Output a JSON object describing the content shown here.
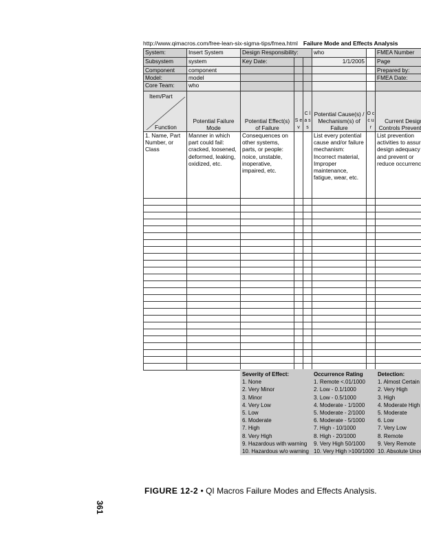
{
  "sheet": {
    "url": "http://www.qimacros.com/free-lean-six-sigma-tips/fmea.html",
    "title": "Failure Mode and Effects Analysis",
    "info": {
      "system_label": "System:",
      "system_value": "Insert System",
      "design_resp_label": "Design Responsibility:",
      "design_resp_value": "who",
      "fmea_number_label": "FMEA Number",
      "subsystem_label": "Subsystem",
      "subsystem_value": "system",
      "key_date_label": "Key Date:",
      "key_date_value": "1/1/2005",
      "page_label": "Page",
      "component_label": "Component",
      "component_value": "component",
      "prepared_by_label": "Prepared by:",
      "model_label": "Model:",
      "model_value": "model",
      "fmea_date_label": "FMEA Date:",
      "core_team_label": "Core Team:",
      "core_team_value": "who"
    },
    "headers": {
      "item_part": "Item/Part",
      "function": "Function",
      "failure_mode": "Potential Failure Mode",
      "effects": "Potential Effect(s) of Failure",
      "sev": "S e v",
      "class": "C l a s s",
      "causes": "Potential Cause(s) / Mechanism(s) of Failure",
      "occur": "O c c u r",
      "controls": "Current Design Controls Prevention"
    },
    "descriptions": {
      "item": "1. Name, Part Number, or Class",
      "failure_mode": "Manner in which part could fail: cracked, loosened, deformed, leaking, oxidized, etc.",
      "effects": "Consequences on other systems, parts, or people: noice, unstable, inoperative, impaired, etc.",
      "causes": "List every potential cause and/or failure mechanism: Incorrect material, Improper maintenance, fatigue, wear, etc.",
      "controls": "List prevention activities to assure design adequacy and prevent or reduce occurrence."
    },
    "legend": {
      "severity": [
        "Severity of Effect:",
        "1. None",
        "2. Very Minor",
        "3. Minor",
        "4. Very Low",
        "5. Low",
        "6. Moderate",
        "7. High",
        "8. Very High",
        "9. Hazardous with warning",
        "10. Hazardous w/o warning"
      ],
      "occurrence": [
        "Occurrence Rating",
        "1. Remote <.01/1000",
        "2. Low - 0.1/1000",
        "3. Low - 0.5/1000",
        "4. Moderate - 1/1000",
        "5. Moderate - 2/1000",
        "6. Moderate - 5/1000",
        "7. High -  10/1000",
        "8. High -  20/1000",
        "9. Very High 50/1000",
        "10. Very High >100/1000"
      ],
      "detection": [
        "Detection:",
        "1. Almost Certain",
        "2. Very High",
        "3. High",
        "4. Moderate High",
        "5. Moderate",
        "6. Low",
        "7. Very Low",
        "8. Remote",
        "9. Very Remote",
        "10. Absolute Unce"
      ]
    }
  },
  "caption": {
    "figure": "FIGURE 12-2",
    "bullet": "•",
    "text": "QI Macros Failure Modes and Effects Analysis."
  },
  "page_number": "361"
}
